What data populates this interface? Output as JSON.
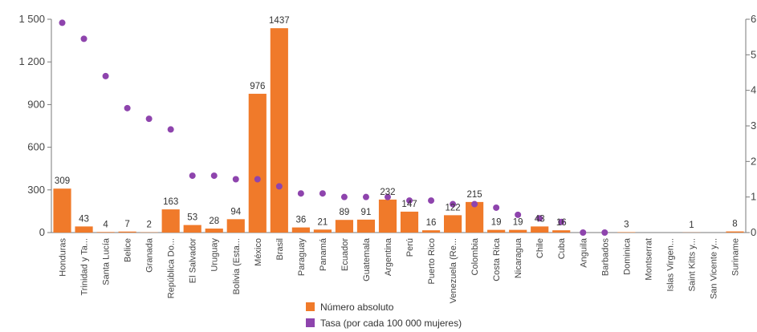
{
  "chart_data": {
    "type": "bar",
    "categories": [
      "Honduras",
      "Trinidad y Ta...",
      "Santa Lucía",
      "Belice",
      "Granada",
      "República Do...",
      "El Salvador",
      "Uruguay",
      "Bolivia (Esta...",
      "México",
      "Brasil",
      "Paraguay",
      "Panamá",
      "Ecuador",
      "Guatemala",
      "Argentina",
      "Perú",
      "Puerto Rico",
      "Venezuela (Re...",
      "Colombia",
      "Costa Rica",
      "Nicaragua",
      "Chile",
      "Cuba",
      "Anguila",
      "Barbados",
      "Dominica",
      "Montserrat",
      "Islas Virgen...",
      "Saint Kitts y...",
      "San Vicente y...",
      "Suriname"
    ],
    "series": [
      {
        "name": "Número absoluto",
        "type": "bar",
        "axis": "left",
        "color": "#f07a2a",
        "values": [
          309,
          43,
          4,
          7,
          2,
          163,
          53,
          28,
          94,
          976,
          1437,
          36,
          21,
          89,
          91,
          232,
          147,
          16,
          122,
          215,
          19,
          19,
          43,
          16,
          0,
          0,
          3,
          0,
          0,
          1,
          0,
          8
        ],
        "labels": [
          "309",
          "43",
          "4",
          "7",
          "2",
          "163",
          "53",
          "28",
          "94",
          "976",
          "1437",
          "36",
          "21",
          "89",
          "91",
          "232",
          "147",
          "16",
          "122",
          "215",
          "19",
          "19",
          "43",
          "16",
          "",
          "",
          "3",
          "",
          "",
          "1",
          "",
          "8"
        ]
      },
      {
        "name": "Tasa (por cada 100 000 mujeres)",
        "type": "scatter",
        "axis": "right",
        "color": "#8e44ad",
        "values": [
          5.9,
          5.45,
          4.4,
          3.5,
          3.2,
          2.9,
          1.6,
          1.6,
          1.5,
          1.5,
          1.3,
          1.1,
          1.1,
          1.0,
          1.0,
          1.0,
          0.9,
          0.9,
          0.8,
          0.8,
          0.7,
          0.5,
          0.4,
          0.3,
          0.0,
          0.0,
          null,
          null,
          null,
          null,
          null,
          null
        ]
      }
    ],
    "y_left": {
      "ylim": [
        0,
        1500
      ],
      "ticks": [
        0,
        300,
        600,
        900,
        1200,
        1500
      ],
      "tick_labels": [
        "0",
        "300",
        "600",
        "900",
        "1 200",
        "1 500"
      ]
    },
    "y_right": {
      "ylim": [
        0,
        6
      ],
      "ticks": [
        0,
        1,
        2,
        3,
        4,
        5,
        6
      ],
      "tick_labels": [
        "0",
        "1",
        "2",
        "3",
        "4",
        "5",
        "6"
      ]
    },
    "grid": false,
    "legend_position": "bottom-center"
  }
}
